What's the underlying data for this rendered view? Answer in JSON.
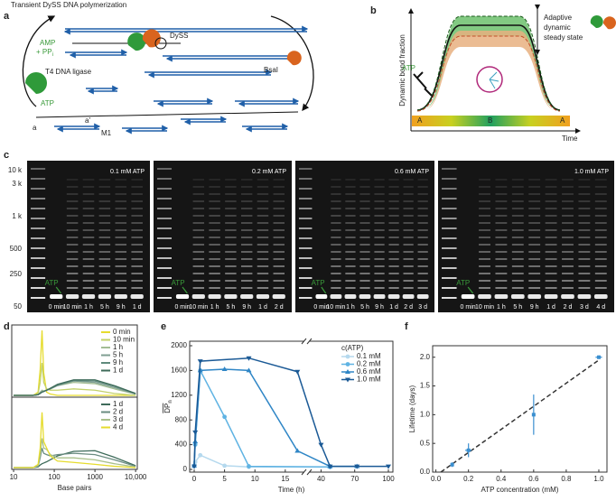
{
  "panel_labels": [
    "a",
    "b",
    "c",
    "d",
    "e",
    "f"
  ],
  "panel_a": {
    "title": "Transient DySS DNA polymerization",
    "amp": "AMP",
    "ppi": "+ PP",
    "ppi_sub": "i",
    "ligase": "T4 DNA ligase",
    "atp": "ATP",
    "dyss": "DySS",
    "bsai": "BsaI",
    "m1": "M1",
    "end_a": "a",
    "end_a_prime": "a'"
  },
  "panel_b": {
    "state": [
      "Adaptive",
      "dynamic",
      "steady state"
    ],
    "atp": "ATP",
    "ylabel": "Dynamic bond fraction",
    "xlabel": "Time",
    "phases": [
      "A",
      "B",
      "A"
    ]
  },
  "panel_c": {
    "size_labels": [
      "10 k",
      "3 k",
      "1 k",
      "500",
      "250",
      "50"
    ],
    "gels": [
      {
        "label": "0.1 mM ATP",
        "arrow": "ATP",
        "lanes": [
          "0 min",
          "10 min",
          "1 h",
          "5 h",
          "9 h",
          "1 d"
        ]
      },
      {
        "label": "0.2 mM ATP",
        "arrow": "ATP",
        "lanes": [
          "0 min",
          "10 min",
          "1 h",
          "5 h",
          "9 h",
          "1 d",
          "2 d"
        ]
      },
      {
        "label": "0.6 mM ATP",
        "arrow": "ATP",
        "lanes": [
          "0 min",
          "10 min",
          "1 h",
          "5 h",
          "9 h",
          "1 d",
          "2 d",
          "3 d"
        ]
      },
      {
        "label": "1.0 mM ATP",
        "arrow": "ATP",
        "lanes": [
          "0 min",
          "10 min",
          "1 h",
          "5 h",
          "9 h",
          "1 d",
          "2 d",
          "3 d",
          "4 d"
        ]
      }
    ]
  },
  "chart_data": [
    {
      "type": "line",
      "xscale": "log",
      "xlim": [
        9,
        11000
      ],
      "ylim": [
        0,
        1
      ],
      "x": [
        10,
        30,
        40,
        45,
        50,
        55,
        65,
        80,
        120,
        300,
        1000,
        3000,
        10000
      ],
      "series": [
        {
          "name": "0 min",
          "color": "#e6dc2e",
          "values": [
            0,
            0,
            0.05,
            0.4,
            1.0,
            0.35,
            0.05,
            0.02,
            0,
            0,
            0,
            0,
            0
          ]
        },
        {
          "name": "10 min",
          "color": "#c3d16a",
          "values": [
            0,
            0,
            0.03,
            0.2,
            0.5,
            0.2,
            0.1,
            0.08,
            0.08,
            0.1,
            0.08,
            0.03,
            0
          ]
        },
        {
          "name": "1 h",
          "color": "#a3bd93",
          "values": [
            0,
            0,
            0.01,
            0.05,
            0.08,
            0.07,
            0.08,
            0.1,
            0.15,
            0.2,
            0.18,
            0.1,
            0.02
          ]
        },
        {
          "name": "5 h",
          "color": "#7f9f92",
          "values": [
            0,
            0,
            0.01,
            0.04,
            0.06,
            0.06,
            0.08,
            0.1,
            0.15,
            0.22,
            0.2,
            0.12,
            0.02
          ]
        },
        {
          "name": "9 h",
          "color": "#5f8a7c",
          "values": [
            0,
            0,
            0.01,
            0.03,
            0.05,
            0.06,
            0.08,
            0.1,
            0.16,
            0.23,
            0.22,
            0.14,
            0.03
          ]
        },
        {
          "name": "1 d",
          "color": "#3e6b5a",
          "values": [
            0,
            0,
            0.01,
            0.03,
            0.05,
            0.06,
            0.08,
            0.11,
            0.17,
            0.24,
            0.24,
            0.15,
            0.03
          ]
        }
      ]
    },
    {
      "type": "line",
      "xscale": "log",
      "xlim": [
        9,
        11000
      ],
      "ylim": [
        0,
        1
      ],
      "xlabel": "Base pairs",
      "xticks": [
        10,
        100,
        1000,
        {
          "value": 10000,
          "label": "10,000"
        }
      ],
      "x": [
        10,
        30,
        40,
        45,
        50,
        55,
        65,
        80,
        120,
        300,
        1000,
        3000,
        10000
      ],
      "series": [
        {
          "name": "1 d",
          "color": "#3e6b5a",
          "values": [
            0,
            0,
            0.01,
            0.04,
            0.06,
            0.07,
            0.09,
            0.12,
            0.18,
            0.25,
            0.26,
            0.16,
            0.03
          ]
        },
        {
          "name": "2 d",
          "color": "#6a8c80",
          "values": [
            0,
            0,
            0.02,
            0.15,
            0.3,
            0.22,
            0.2,
            0.18,
            0.2,
            0.22,
            0.2,
            0.12,
            0.02
          ]
        },
        {
          "name": "3 d",
          "color": "#a9c08a",
          "values": [
            0,
            0,
            0.03,
            0.2,
            0.45,
            0.3,
            0.28,
            0.2,
            0.15,
            0.15,
            0.12,
            0.06,
            0.01
          ]
        },
        {
          "name": "4 d",
          "color": "#e6dc2e",
          "values": [
            0,
            0,
            0.05,
            0.3,
            0.85,
            0.4,
            0.3,
            0.18,
            0.1,
            0.08,
            0.05,
            0.02,
            0
          ]
        }
      ]
    },
    {
      "type": "line",
      "xlabel": "Time (h)",
      "ylabel": {
        "main": "DP",
        "sub": "n"
      },
      "legend_title": "c(ATP)",
      "xlim": [
        0,
        100
      ],
      "xbreak": [
        18,
        30
      ],
      "xticks": [
        0,
        5,
        10,
        15,
        40,
        70,
        100
      ],
      "ylim": [
        0,
        2000
      ],
      "yticks": [
        0,
        400,
        800,
        1200,
        1600,
        2000
      ],
      "series": [
        {
          "name": "0.1 mM",
          "color": "#b5d9ee",
          "marker": "circle",
          "x": [
            0,
            0.17,
            1,
            5,
            9,
            48
          ],
          "values": [
            50,
            120,
            230,
            60,
            40,
            40
          ]
        },
        {
          "name": "0.2 mM",
          "color": "#5fb3e3",
          "marker": "circle",
          "x": [
            0,
            0.17,
            1,
            5,
            9,
            48
          ],
          "values": [
            60,
            400,
            1600,
            850,
            50,
            40
          ]
        },
        {
          "name": "0.6 mM",
          "color": "#2f86c6",
          "marker": "triangle-up",
          "x": [
            0,
            0.17,
            1,
            5,
            9,
            17,
            48,
            72
          ],
          "values": [
            60,
            450,
            1600,
            1620,
            1600,
            300,
            50,
            50
          ]
        },
        {
          "name": "1.0 mM",
          "color": "#1b5a96",
          "marker": "triangle-down",
          "x": [
            0,
            0.17,
            1,
            9,
            17,
            40,
            48,
            72,
            100
          ],
          "values": [
            50,
            600,
            1750,
            1800,
            1580,
            400,
            50,
            50,
            50
          ]
        }
      ]
    },
    {
      "type": "scatter",
      "xlabel": "ATP concentration (mM)",
      "ylabel": "Lifetime (days)",
      "color": "#3a8fd0",
      "xlim": [
        -0.02,
        1.05
      ],
      "ylim": [
        0,
        2.2
      ],
      "xticks": [
        {
          "value": 0,
          "label": "0.0"
        },
        {
          "value": 0.2,
          "label": "0.2"
        },
        {
          "value": 0.4,
          "label": "0.4"
        },
        {
          "value": 0.6,
          "label": "0.6"
        },
        {
          "value": 0.8,
          "label": "0.8"
        },
        {
          "value": 1,
          "label": "1.0"
        }
      ],
      "yticks": [
        {
          "value": 0,
          "label": "0.0"
        },
        0.5,
        {
          "value": 1,
          "label": "1.0"
        },
        1.5,
        {
          "value": 2,
          "label": "2.0"
        }
      ],
      "x": [
        0.1,
        0.2,
        0.6,
        1.0
      ],
      "values": [
        0.13,
        0.38,
        1.0,
        2.0
      ],
      "errors": [
        0.04,
        0.12,
        0.35,
        0.03
      ],
      "x_errors": [
        0.01,
        0.02,
        0.005,
        0.02
      ],
      "fit": {
        "x": [
          0.03,
          1.0
        ],
        "values": [
          0,
          1.95
        ]
      }
    }
  ]
}
